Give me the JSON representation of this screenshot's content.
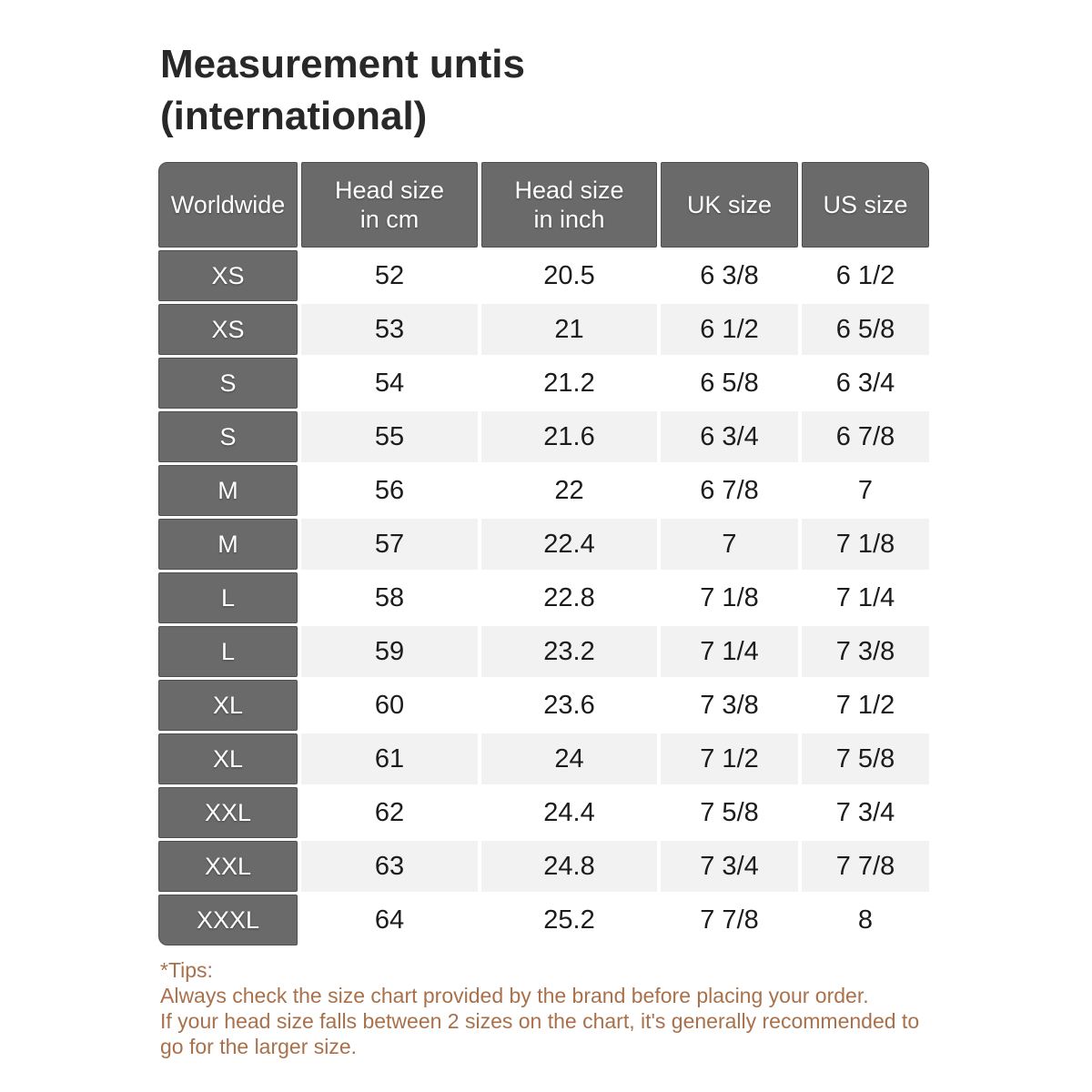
{
  "title": {
    "line1": "Measurement untis",
    "line2": "(international)"
  },
  "table": {
    "columns": [
      "Worldwide",
      "Head size\nin cm",
      "Head size\nin inch",
      "UK size",
      "US size"
    ],
    "rows": [
      [
        "XS",
        "52",
        "20.5",
        "6 3/8",
        "6 1/2"
      ],
      [
        "XS",
        "53",
        "21",
        "6 1/2",
        "6 5/8"
      ],
      [
        "S",
        "54",
        "21.2",
        "6 5/8",
        "6 3/4"
      ],
      [
        "S",
        "55",
        "21.6",
        "6 3/4",
        "6 7/8"
      ],
      [
        "M",
        "56",
        "22",
        "6 7/8",
        "7"
      ],
      [
        "M",
        "57",
        "22.4",
        "7",
        "7 1/8"
      ],
      [
        "L",
        "58",
        "22.8",
        "7 1/8",
        "7 1/4"
      ],
      [
        "L",
        "59",
        "23.2",
        "7 1/4",
        "7 3/8"
      ],
      [
        "XL",
        "60",
        "23.6",
        "7 3/8",
        "7 1/2"
      ],
      [
        "XL",
        "61",
        "24",
        "7 1/2",
        "7 5/8"
      ],
      [
        "XXL",
        "62",
        "24.4",
        "7 5/8",
        "7 3/4"
      ],
      [
        "XXL",
        "63",
        "24.8",
        "7 3/4",
        "7 7/8"
      ],
      [
        "XXXL",
        "64",
        "25.2",
        "7 7/8",
        "8"
      ]
    ]
  },
  "tips": {
    "heading": "*Tips:",
    "lines": [
      "Always check the size chart provided by the brand before placing your order.",
      "If your head size falls between 2 sizes on the chart, it's generally recommended to",
      "go for the larger size."
    ]
  },
  "colors": {
    "header_bg": "#6a6a6a",
    "header_border": "#4e4e4e",
    "row_bg": "#ffffff",
    "row_alt_bg": "#f2f2f2",
    "body_text": "#1c1c1c",
    "title_text": "#282828",
    "tips_text": "#a9714b"
  }
}
